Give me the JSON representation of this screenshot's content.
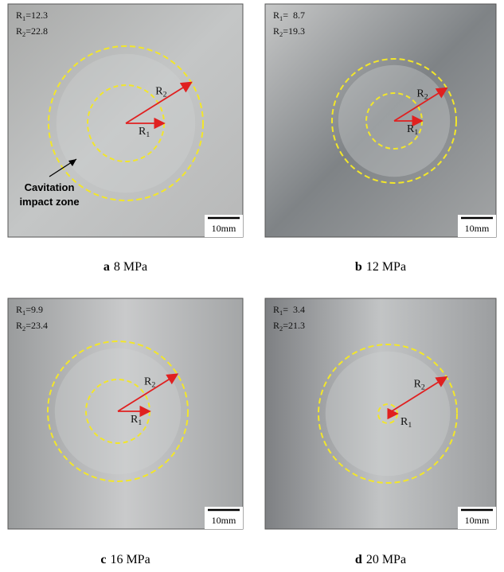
{
  "panels": [
    {
      "letter": "a",
      "caption": "8 MPa",
      "r1": {
        "base": "R",
        "sub": "1",
        "value": "=12.3"
      },
      "r2": {
        "base": "R",
        "sub": "2",
        "value": "=22.8"
      },
      "arrow_r1": {
        "base": "R",
        "sub": "1"
      },
      "arrow_r2": {
        "base": "R",
        "sub": "2"
      },
      "scale": "10mm",
      "annotation": [
        "Cavitation",
        "impact zone"
      ]
    },
    {
      "letter": "b",
      "caption": "12 MPa",
      "r1": {
        "base": "R",
        "sub": "1",
        "value": "=  8.7"
      },
      "r2": {
        "base": "R",
        "sub": "2",
        "value": "=19.3"
      },
      "arrow_r1": {
        "base": "R",
        "sub": "1"
      },
      "arrow_r2": {
        "base": "R",
        "sub": "2"
      },
      "scale": "10mm"
    },
    {
      "letter": "c",
      "caption": "16 MPa",
      "r1": {
        "base": "R",
        "sub": "1",
        "value": "=9.9"
      },
      "r2": {
        "base": "R",
        "sub": "2",
        "value": "=23.4"
      },
      "arrow_r1": {
        "base": "R",
        "sub": "1"
      },
      "arrow_r2": {
        "base": "R",
        "sub": "2"
      },
      "scale": "10mm"
    },
    {
      "letter": "d",
      "caption": "20 MPa",
      "r1": {
        "base": "R",
        "sub": "1",
        "value": "=  3.4"
      },
      "r2": {
        "base": "R",
        "sub": "2",
        "value": "=21.3"
      },
      "arrow_r1": {
        "base": "R",
        "sub": "1"
      },
      "arrow_r2": {
        "base": "R",
        "sub": "2"
      },
      "scale": "10mm"
    }
  ]
}
